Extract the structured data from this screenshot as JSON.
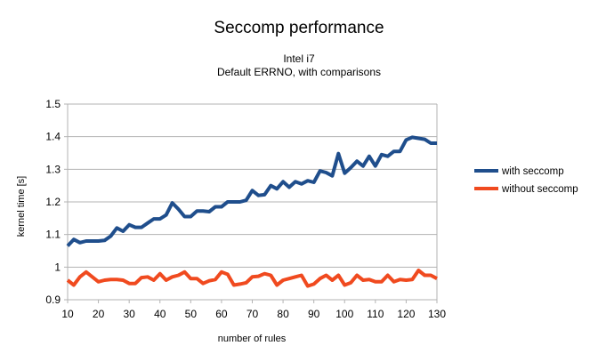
{
  "chart_data": {
    "type": "line",
    "title": "Seccomp performance",
    "subtitle_lines": [
      "Intel i7",
      "Default ERRNO, with comparisons"
    ],
    "xlabel": "number of rules",
    "ylabel": "kernel time [s]",
    "xlim": [
      10,
      130
    ],
    "ylim": [
      0.9,
      1.5
    ],
    "x_ticks": [
      10,
      20,
      30,
      40,
      50,
      60,
      70,
      80,
      90,
      100,
      110,
      120,
      130
    ],
    "x_tick_labels": [
      "10",
      "20",
      "30",
      "40",
      "50",
      "60",
      "70",
      "80",
      "90",
      "100",
      "110",
      "120",
      "130"
    ],
    "y_ticks": [
      0.9,
      1.0,
      1.1,
      1.2,
      1.3,
      1.4,
      1.5
    ],
    "y_tick_labels": [
      "0.9",
      "1",
      "1.1",
      "1.2",
      "1.3",
      "1.4",
      "1.5"
    ],
    "grid": "horizontal",
    "legend_position": "right",
    "x": [
      10,
      12,
      14,
      16,
      18,
      20,
      22,
      24,
      26,
      28,
      30,
      32,
      34,
      36,
      38,
      40,
      42,
      44,
      46,
      48,
      50,
      52,
      54,
      56,
      58,
      60,
      62,
      64,
      66,
      68,
      70,
      72,
      74,
      76,
      78,
      80,
      82,
      84,
      86,
      88,
      90,
      92,
      94,
      96,
      98,
      100,
      102,
      104,
      106,
      108,
      110,
      112,
      114,
      116,
      118,
      120,
      122,
      124,
      126,
      128,
      130
    ],
    "series": [
      {
        "name": "with seccomp",
        "color": "#1f4e8c",
        "values": [
          1.065,
          1.085,
          1.075,
          1.08,
          1.08,
          1.08,
          1.082,
          1.095,
          1.12,
          1.11,
          1.13,
          1.122,
          1.122,
          1.135,
          1.148,
          1.148,
          1.16,
          1.197,
          1.178,
          1.155,
          1.155,
          1.172,
          1.172,
          1.17,
          1.185,
          1.185,
          1.2,
          1.2,
          1.2,
          1.205,
          1.235,
          1.22,
          1.222,
          1.25,
          1.24,
          1.262,
          1.245,
          1.262,
          1.255,
          1.265,
          1.26,
          1.295,
          1.29,
          1.28,
          1.348,
          1.288,
          1.305,
          1.325,
          1.31,
          1.34,
          1.31,
          1.345,
          1.34,
          1.355,
          1.355,
          1.39,
          1.398,
          1.395,
          1.392,
          1.38,
          1.38
        ]
      },
      {
        "name": "without seccomp",
        "color": "#f04a1f",
        "values": [
          0.96,
          0.945,
          0.97,
          0.985,
          0.97,
          0.955,
          0.96,
          0.962,
          0.962,
          0.96,
          0.95,
          0.95,
          0.968,
          0.97,
          0.96,
          0.98,
          0.96,
          0.97,
          0.975,
          0.985,
          0.965,
          0.965,
          0.95,
          0.958,
          0.962,
          0.985,
          0.978,
          0.945,
          0.948,
          0.952,
          0.97,
          0.972,
          0.98,
          0.975,
          0.945,
          0.96,
          0.965,
          0.97,
          0.975,
          0.942,
          0.948,
          0.965,
          0.975,
          0.96,
          0.975,
          0.945,
          0.952,
          0.975,
          0.96,
          0.962,
          0.955,
          0.955,
          0.975,
          0.955,
          0.962,
          0.96,
          0.962,
          0.99,
          0.975,
          0.975,
          0.965
        ]
      }
    ]
  }
}
